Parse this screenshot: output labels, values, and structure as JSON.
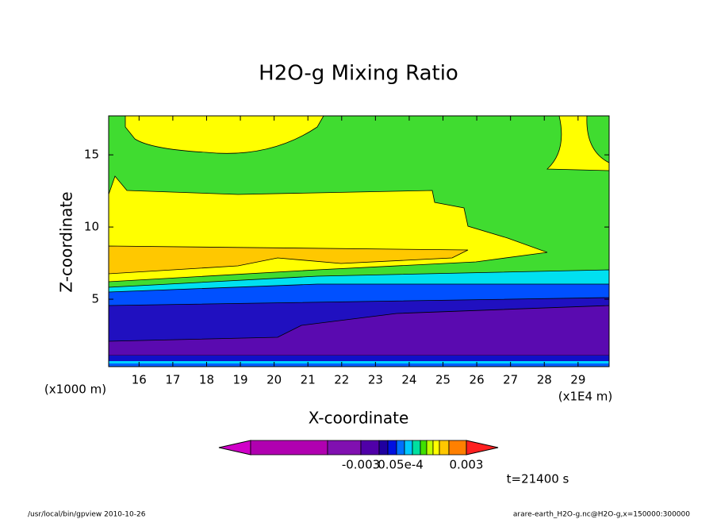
{
  "chart_data": {
    "type": "contour",
    "title": "H2O-g Mixing Ratio",
    "x_label": "X-coordinate",
    "y_label": "Z-coordinate",
    "x_unit": "(x1E4 m)",
    "y_unit": "(x1000 m)",
    "xlim": [
      15.1,
      29.92
    ],
    "ylim": [
      0.33,
      17.7
    ],
    "xticks": [
      16,
      17,
      18,
      19,
      20,
      21,
      22,
      23,
      24,
      25,
      26,
      27,
      28,
      29
    ],
    "yticks": [
      5,
      10,
      15
    ],
    "colorbar": {
      "colors": [
        "#d000c8",
        "#b000b0",
        "#8010b0",
        "#5000a8",
        "#2000a0",
        "#0010e0",
        "#0070ff",
        "#00c8ff",
        "#00e0a0",
        "#40e000",
        "#c0ff00",
        "#ffff00",
        "#ffc800",
        "#ff8000",
        "#ff2020"
      ],
      "labels": [
        "-0.003",
        "0.05e-4",
        "0.003"
      ]
    },
    "annotation": "t=21400 s"
  },
  "footer": {
    "left": "/usr/local/bin/gpview  2010-10-26",
    "right": "arare-earth_H2O-g.nc@H2O-g,x=150000:300000"
  }
}
